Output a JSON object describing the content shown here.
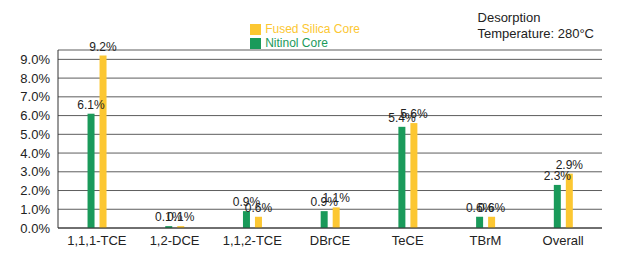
{
  "chart_data": {
    "type": "bar",
    "categories": [
      "1,1,1-TCE",
      "1,2-DCE",
      "1,1,2-TCE",
      "DBrCE",
      "TeCE",
      "TBrM",
      "Overall"
    ],
    "series": [
      {
        "name": "Nitinol Core",
        "color": "#1a9a5a",
        "values": [
          6.1,
          0.1,
          0.9,
          0.9,
          5.4,
          0.6,
          2.3
        ],
        "value_labels": [
          "6.1%",
          "0.1%",
          "0.9%",
          "0.9%",
          "5.4%",
          "0.6%",
          "2.3%"
        ]
      },
      {
        "name": "Fused Silica Core",
        "color": "#fcc732",
        "values": [
          9.2,
          0.1,
          0.6,
          1.1,
          5.6,
          0.6,
          2.9
        ],
        "value_labels": [
          "9.2%",
          "0.1%",
          "0.6%",
          "1.1%",
          "5.6%",
          "0.6%",
          "2.9%"
        ]
      }
    ],
    "ylim": [
      0,
      9.5
    ],
    "yticks": [
      {
        "value": 0,
        "label": "0.0%"
      },
      {
        "value": 1,
        "label": "1.0%"
      },
      {
        "value": 2,
        "label": "2.0%"
      },
      {
        "value": 3,
        "label": "3.0%"
      },
      {
        "value": 4,
        "label": "4.0%"
      },
      {
        "value": 5,
        "label": "5.0%"
      },
      {
        "value": 6,
        "label": "6.0%"
      },
      {
        "value": 7,
        "label": "7.0%"
      },
      {
        "value": 8,
        "label": "8.0%"
      },
      {
        "value": 9,
        "label": "9.0%"
      }
    ],
    "annotations": [
      "Desorption",
      "Temperature: 280°C"
    ],
    "grid": true,
    "legend": "top",
    "data_labels": true
  }
}
